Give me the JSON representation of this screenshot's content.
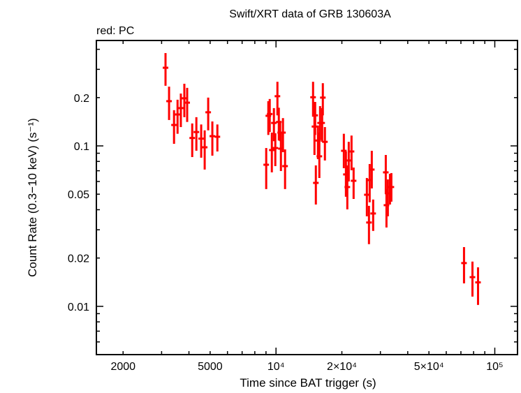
{
  "chart_data": {
    "type": "scatter",
    "title": "Swift/XRT data of GRB 130603A",
    "subtitle": "red: PC",
    "xlabel": "Time since BAT trigger (s)",
    "ylabel": "Count Rate (0.3−10 keV) (s⁻¹)",
    "xscale": "log",
    "yscale": "log",
    "xlim": [
      1510,
      127000
    ],
    "ylim": [
      0.005,
      0.454
    ],
    "grid": false,
    "xticks": [
      {
        "value": 2000,
        "label": "2000"
      },
      {
        "value": 5000,
        "label": "5000"
      },
      {
        "value": 10000,
        "label": "10⁴"
      },
      {
        "value": 20000,
        "label": "2×10⁴"
      },
      {
        "value": 50000,
        "label": "5×10⁴"
      },
      {
        "value": 100000,
        "label": "10⁵"
      }
    ],
    "yticks": [
      {
        "value": 0.01,
        "label": "0.01"
      },
      {
        "value": 0.02,
        "label": "0.02"
      },
      {
        "value": 0.05,
        "label": "0.05"
      },
      {
        "value": 0.1,
        "label": "0.1"
      },
      {
        "value": 0.2,
        "label": "0.2"
      }
    ],
    "series": [
      {
        "name": "PC",
        "color": "#ff0000",
        "points_format": [
          "time_s",
          "rate",
          "rate_low",
          "rate_high"
        ],
        "points": [
          [
            3126,
            0.307,
            0.237,
            0.379
          ],
          [
            3245,
            0.19,
            0.145,
            0.234
          ],
          [
            3419,
            0.135,
            0.103,
            0.167
          ],
          [
            3548,
            0.157,
            0.119,
            0.194
          ],
          [
            3673,
            0.172,
            0.131,
            0.212
          ],
          [
            3811,
            0.198,
            0.151,
            0.244
          ],
          [
            3926,
            0.186,
            0.141,
            0.23
          ],
          [
            4140,
            0.112,
            0.0852,
            0.138
          ],
          [
            4325,
            0.122,
            0.0933,
            0.151
          ],
          [
            4550,
            0.111,
            0.0844,
            0.136
          ],
          [
            4721,
            0.098,
            0.0712,
            0.125
          ],
          [
            4898,
            0.162,
            0.125,
            0.2
          ],
          [
            5117,
            0.115,
            0.0869,
            0.142
          ],
          [
            5395,
            0.114,
            0.0923,
            0.136
          ],
          [
            9020,
            0.0763,
            0.0538,
            0.097
          ],
          [
            9224,
            0.154,
            0.117,
            0.19
          ],
          [
            9360,
            0.158,
            0.122,
            0.196
          ],
          [
            9570,
            0.0942,
            0.0684,
            0.121
          ],
          [
            9781,
            0.139,
            0.107,
            0.172
          ],
          [
            9927,
            0.097,
            0.0748,
            0.12
          ],
          [
            10150,
            0.204,
            0.155,
            0.251
          ],
          [
            10300,
            0.141,
            0.108,
            0.173
          ],
          [
            10450,
            0.121,
            0.107,
            0.141
          ],
          [
            10530,
            0.0961,
            0.0697,
            0.121
          ],
          [
            10760,
            0.121,
            0.0914,
            0.149
          ],
          [
            11000,
            0.0748,
            0.0538,
            0.0951
          ],
          [
            14770,
            0.201,
            0.152,
            0.251
          ],
          [
            14990,
            0.132,
            0.0878,
            0.188
          ],
          [
            15100,
            0.155,
            0.117,
            0.188
          ],
          [
            15210,
            0.0588,
            0.0431,
            0.0756
          ],
          [
            15550,
            0.108,
            0.0827,
            0.134
          ],
          [
            15780,
            0.0861,
            0.0631,
            0.121
          ],
          [
            15900,
            0.139,
            0.109,
            0.177
          ],
          [
            16250,
            0.139,
            0.106,
            0.172
          ],
          [
            16370,
            0.2,
            0.155,
            0.246
          ],
          [
            16730,
            0.106,
            0.0811,
            0.131
          ],
          [
            20420,
            0.0932,
            0.0726,
            0.119
          ],
          [
            20870,
            0.0664,
            0.0482,
            0.0923
          ],
          [
            21180,
            0.0554,
            0.0402,
            0.0756
          ],
          [
            21500,
            0.0811,
            0.06,
            0.106
          ],
          [
            22140,
            0.0923,
            0.0705,
            0.116
          ],
          [
            22630,
            0.0606,
            0.0467,
            0.0733
          ],
          [
            26020,
            0.0496,
            0.0364,
            0.0631
          ],
          [
            26600,
            0.0333,
            0.0244,
            0.0423
          ],
          [
            26800,
            0.0612,
            0.0445,
            0.0771
          ],
          [
            27400,
            0.0712,
            0.0543,
            0.0932
          ],
          [
            27800,
            0.0379,
            0.0295,
            0.0463
          ],
          [
            31750,
            0.0684,
            0.0501,
            0.0878
          ],
          [
            31980,
            0.0427,
            0.031,
            0.0538
          ],
          [
            32450,
            0.0506,
            0.0364,
            0.0618
          ],
          [
            33180,
            0.0554,
            0.0431,
            0.067
          ],
          [
            33670,
            0.0554,
            0.0449,
            0.0677
          ],
          [
            72330,
            0.0186,
            0.0139,
            0.0234
          ],
          [
            79050,
            0.0152,
            0.0115,
            0.019
          ],
          [
            83820,
            0.0141,
            0.0102,
            0.0175
          ]
        ]
      }
    ]
  }
}
